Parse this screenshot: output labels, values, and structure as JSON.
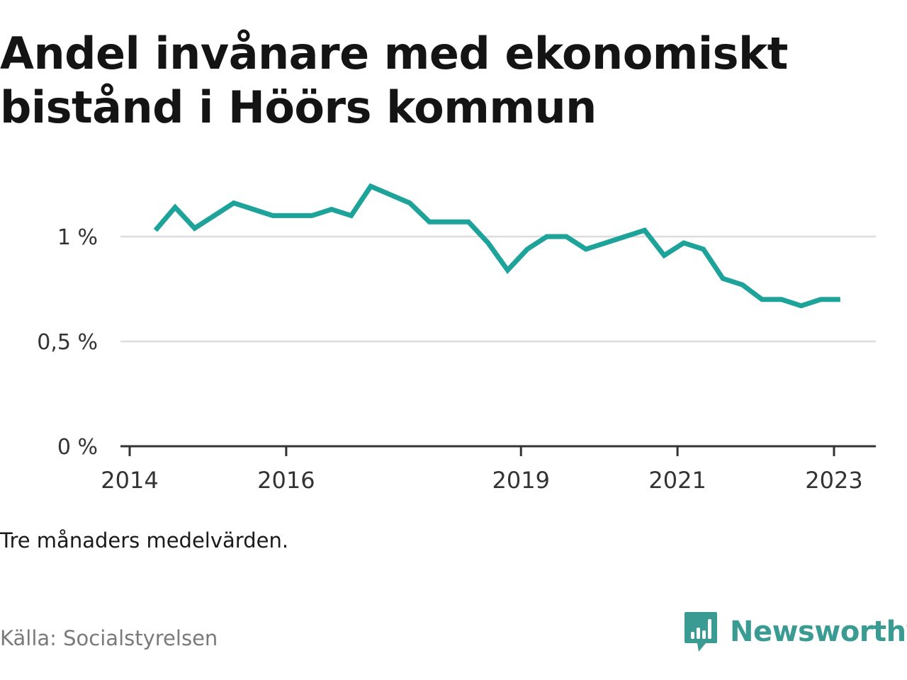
{
  "chart_data": {
    "type": "line",
    "title": "Andel invånare med ekonomiskt bistånd i Höörs kommun",
    "note": "Tre månaders medelvärden.",
    "source": "Källa: Socialstyrelsen",
    "brand": "Newsworthy",
    "ylim": [
      0,
      1.2
    ],
    "xlim": [
      2014.0,
      2023.25
    ],
    "y_ticks": [
      {
        "value": 0,
        "label": "0 %"
      },
      {
        "value": 0.5,
        "label": "0,5 %"
      },
      {
        "value": 1,
        "label": "1 %"
      }
    ],
    "x_ticks": [
      {
        "value": 2014,
        "label": "2014"
      },
      {
        "value": 2016,
        "label": "2016"
      },
      {
        "value": 2019,
        "label": "2019"
      },
      {
        "value": 2021,
        "label": "2021"
      },
      {
        "value": 2023,
        "label": "2023"
      }
    ],
    "grid": true,
    "color": "#1da39a",
    "series": [
      {
        "x": [
          2014.33,
          2014.58,
          2014.83,
          2015.08,
          2015.33,
          2015.58,
          2015.83,
          2016.08,
          2016.33,
          2016.58,
          2016.83,
          2017.08,
          2017.33,
          2017.58,
          2017.83,
          2018.08,
          2018.33,
          2018.58,
          2018.83,
          2019.08,
          2019.33,
          2019.58,
          2019.83,
          2020.08,
          2020.33,
          2020.58,
          2020.83,
          2021.08,
          2021.33,
          2021.58,
          2021.83,
          2022.08,
          2022.33,
          2022.58,
          2022.83,
          2023.08
        ],
        "y": [
          1.03,
          1.14,
          1.04,
          1.1,
          1.16,
          1.13,
          1.1,
          1.1,
          1.1,
          1.13,
          1.1,
          1.24,
          1.2,
          1.16,
          1.07,
          1.07,
          1.07,
          0.97,
          0.84,
          0.94,
          1.0,
          1.0,
          0.94,
          0.97,
          1.0,
          1.03,
          0.91,
          0.97,
          0.94,
          0.8,
          0.77,
          0.7,
          0.7,
          0.67,
          0.7,
          0.7
        ]
      }
    ]
  }
}
